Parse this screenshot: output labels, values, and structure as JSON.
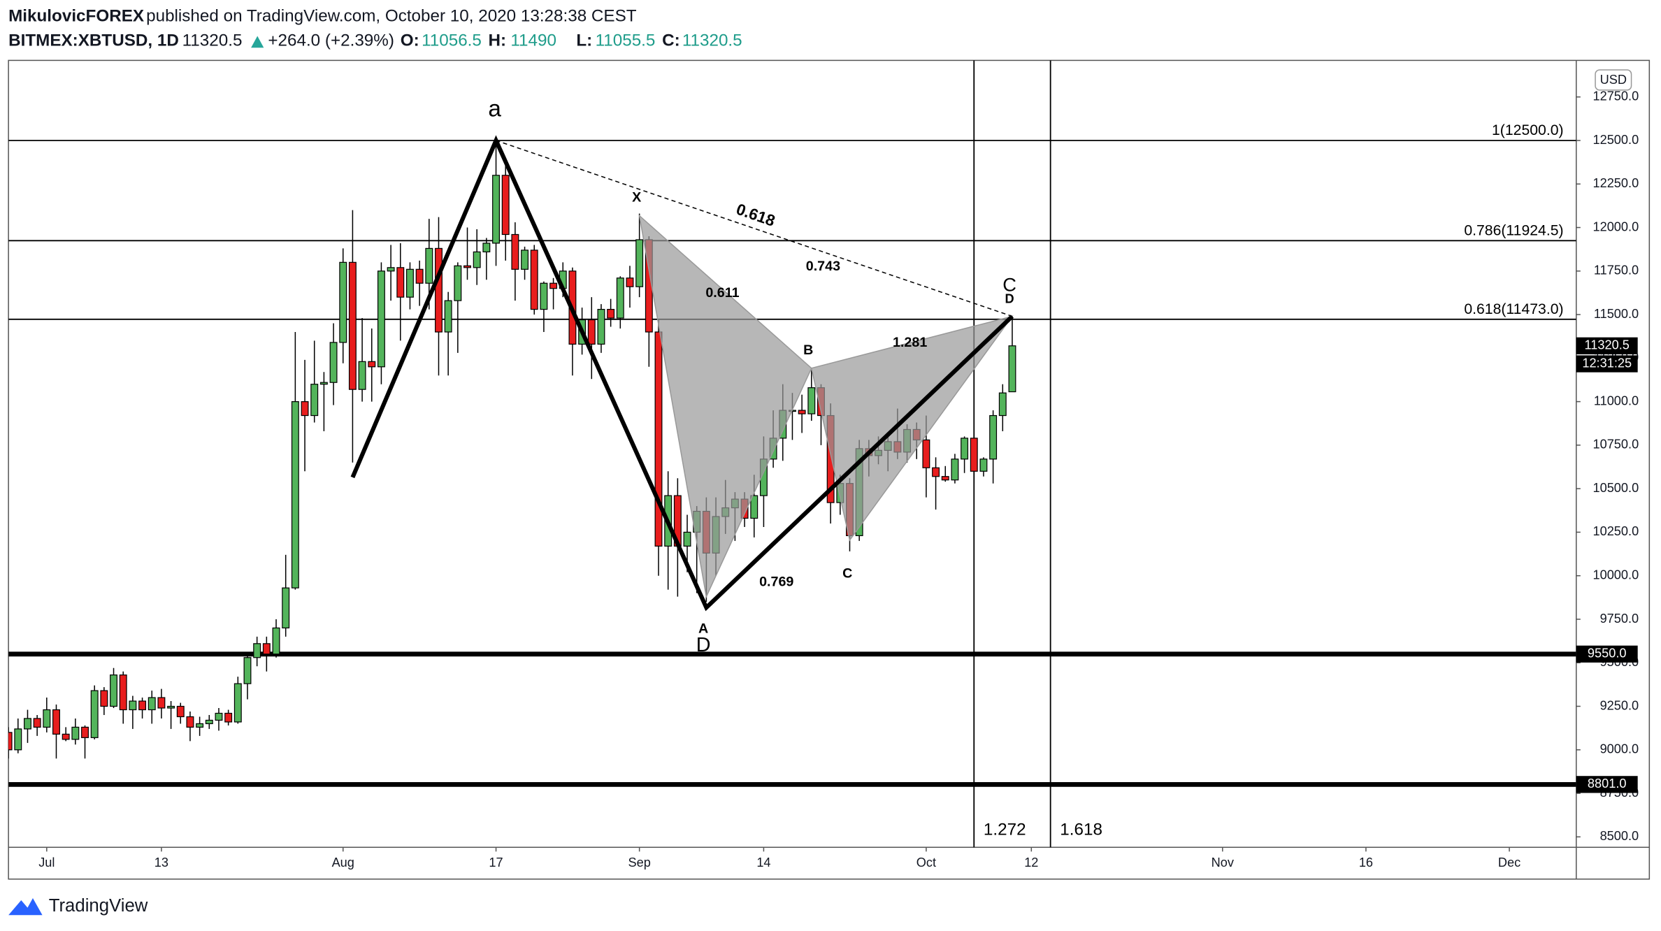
{
  "header": {
    "author": "MikulovicFOREX",
    "published": "published on TradingView.com, October 10, 2020 13:28:38 CEST",
    "symbol": "BITMEX:XBTUSD, 1D",
    "change": "+264.0 (+2.39%)",
    "open_label": "O:",
    "high_label": "H:",
    "low_label": "L:",
    "close_label": "C:"
  },
  "chart_data": {
    "type": "candlestick",
    "currency": "USD",
    "countdown": "12:31:25",
    "x": [
      "06-27",
      "06-28",
      "06-29",
      "06-30",
      "07-01",
      "07-02",
      "07-03",
      "07-04",
      "07-05",
      "07-06",
      "07-07",
      "07-08",
      "07-09",
      "07-10",
      "07-11",
      "07-12",
      "07-13",
      "07-14",
      "07-15",
      "07-16",
      "07-17",
      "07-18",
      "07-19",
      "07-20",
      "07-21",
      "07-22",
      "07-23",
      "07-24",
      "07-25",
      "07-26",
      "07-27",
      "07-28",
      "07-29",
      "07-30",
      "07-31",
      "08-01",
      "08-02",
      "08-03",
      "08-04",
      "08-05",
      "08-06",
      "08-07",
      "08-08",
      "08-09",
      "08-10",
      "08-11",
      "08-12",
      "08-13",
      "08-14",
      "08-15",
      "08-16",
      "08-17",
      "08-18",
      "08-19",
      "08-20",
      "08-21",
      "08-22",
      "08-23",
      "08-24",
      "08-25",
      "08-26",
      "08-27",
      "08-28",
      "08-29",
      "08-30",
      "08-31",
      "09-01",
      "09-02",
      "09-03",
      "09-04",
      "09-05",
      "09-06",
      "09-07",
      "09-08",
      "09-09",
      "09-10",
      "09-11",
      "09-12",
      "09-13",
      "09-14",
      "09-15",
      "09-16",
      "09-17",
      "09-18",
      "09-19",
      "09-20",
      "09-21",
      "09-22",
      "09-23",
      "09-24",
      "09-25",
      "09-26",
      "09-27",
      "09-28",
      "09-29",
      "09-30",
      "10-01",
      "10-02",
      "10-03",
      "10-04",
      "10-05",
      "10-06",
      "10-07",
      "10-08",
      "10-09",
      "10-10"
    ],
    "open": [
      9100,
      9000,
      9120,
      9180,
      9130,
      9230,
      9090,
      9060,
      9130,
      9070,
      9340,
      9250,
      9430,
      9230,
      9280,
      9230,
      9300,
      9240,
      9250,
      9190,
      9130,
      9150,
      9170,
      9210,
      9160,
      9380,
      9530,
      9610,
      9550,
      9700,
      9930,
      11000,
      10920,
      11100,
      11110,
      11340,
      11800,
      11070,
      11230,
      11200,
      11750,
      11770,
      11600,
      11760,
      11680,
      11880,
      11400,
      11580,
      11780,
      11770,
      11860,
      11910,
      12300,
      11960,
      11760,
      11870,
      11530,
      11680,
      11650,
      11750,
      11330,
      11470,
      11330,
      11530,
      11480,
      11710,
      11660,
      11930,
      11400,
      10170,
      10460,
      10170,
      10250,
      10370,
      10130,
      10340,
      10390,
      10440,
      10330,
      10460,
      10670,
      10790,
      10950,
      10950,
      10930,
      11080,
      10920,
      10420,
      10530,
      10230,
      10730,
      10690,
      10720,
      10770,
      10710,
      10840,
      10780,
      10620,
      10570,
      10550,
      10670,
      10790,
      10600,
      10670,
      10920,
      11056.5
    ],
    "high": [
      9130,
      9180,
      9230,
      9200,
      9300,
      9260,
      9130,
      9180,
      9140,
      9370,
      9360,
      9470,
      9450,
      9310,
      9300,
      9340,
      9350,
      9280,
      9270,
      9220,
      9190,
      9200,
      9240,
      9230,
      9420,
      9550,
      9650,
      9650,
      9750,
      10120,
      11400,
      11240,
      11350,
      11170,
      11450,
      11880,
      12100,
      11480,
      11420,
      11800,
      11900,
      11910,
      11800,
      11810,
      12050,
      12060,
      11630,
      11800,
      12000,
      11990,
      11940,
      12470,
      12390,
      12030,
      11890,
      11900,
      11690,
      11710,
      11800,
      11770,
      11540,
      11600,
      11560,
      11590,
      11720,
      11780,
      12080,
      11950,
      11470,
      10600,
      10560,
      10350,
      10400,
      10450,
      10450,
      10550,
      10480,
      10480,
      10580,
      10800,
      10950,
      11100,
      11050,
      11040,
      11180,
      11100,
      10990,
      10580,
      10560,
      10780,
      10780,
      10800,
      10820,
      10960,
      10870,
      10880,
      10920,
      10680,
      10630,
      10700,
      10800,
      10800,
      10680,
      10950,
      11100,
      11490
    ],
    "low": [
      8950,
      8980,
      9040,
      9080,
      9100,
      8950,
      9050,
      9030,
      8950,
      9060,
      9200,
      9240,
      9150,
      9120,
      9180,
      9150,
      9180,
      9120,
      9150,
      9050,
      9080,
      9120,
      9110,
      9140,
      9150,
      9290,
      9480,
      9450,
      9530,
      9650,
      9920,
      10600,
      10880,
      10830,
      10980,
      11220,
      10650,
      11000,
      11000,
      11100,
      11580,
      11350,
      11530,
      11550,
      11530,
      11150,
      11150,
      11280,
      11700,
      11670,
      11700,
      11780,
      11810,
      11580,
      11700,
      11500,
      11400,
      11530,
      11600,
      11150,
      11270,
      11130,
      11280,
      11430,
      11420,
      11540,
      11600,
      11200,
      10000,
      9920,
      9880,
      10020,
      9900,
      9850,
      10000,
      10240,
      10200,
      10280,
      10220,
      10280,
      10620,
      10660,
      10780,
      10820,
      10890,
      10750,
      10300,
      10350,
      10140,
      10200,
      10570,
      10640,
      10600,
      10670,
      10650,
      10670,
      10450,
      10380,
      10540,
      10530,
      10590,
      10530,
      10570,
      10530,
      10830,
      11055.5
    ],
    "close": [
      9000,
      9120,
      9180,
      9130,
      9230,
      9090,
      9060,
      9130,
      9070,
      9340,
      9250,
      9430,
      9230,
      9280,
      9230,
      9300,
      9240,
      9250,
      9190,
      9130,
      9150,
      9170,
      9210,
      9160,
      9380,
      9530,
      9610,
      9550,
      9700,
      9930,
      11000,
      10920,
      11100,
      11110,
      11340,
      11800,
      11070,
      11230,
      11200,
      11750,
      11770,
      11600,
      11760,
      11680,
      11880,
      11400,
      11580,
      11780,
      11770,
      11860,
      11910,
      12300,
      11960,
      11760,
      11870,
      11530,
      11680,
      11650,
      11750,
      11330,
      11470,
      11330,
      11530,
      11480,
      11710,
      11660,
      11930,
      11400,
      10170,
      10460,
      10170,
      10250,
      10370,
      10130,
      10340,
      10390,
      10440,
      10330,
      10460,
      10670,
      10790,
      10950,
      10950,
      10930,
      11080,
      10920,
      10420,
      10530,
      10230,
      10730,
      10690,
      10720,
      10770,
      10710,
      10840,
      10780,
      10620,
      10570,
      10550,
      10670,
      10790,
      10600,
      10670,
      10920,
      11050,
      11320.5
    ],
    "up_color": "#53b45b",
    "down_color": "#e81d1d",
    "xlim": [
      "06-27",
      "12-08"
    ],
    "xticks": [
      {
        "value": "07-01",
        "label": "Jul"
      },
      {
        "value": "07-13",
        "label": "13"
      },
      {
        "value": "08-01",
        "label": "Aug"
      },
      {
        "value": "08-17",
        "label": "17"
      },
      {
        "value": "09-01",
        "label": "Sep"
      },
      {
        "value": "09-14",
        "label": "14"
      },
      {
        "value": "10-01",
        "label": "Oct"
      },
      {
        "value": "10-12",
        "label": "12"
      },
      {
        "value": "11-01",
        "label": "Nov"
      },
      {
        "value": "11-16",
        "label": "16"
      },
      {
        "value": "12-01",
        "label": "Dec"
      }
    ],
    "ylim": [
      8440,
      12960
    ],
    "yticks": [
      {
        "value": 8500,
        "label": "8500.0"
      },
      {
        "value": 8750,
        "label": "8750.0"
      },
      {
        "value": 9000,
        "label": "9000.0"
      },
      {
        "value": 9250,
        "label": "9250.0"
      },
      {
        "value": 9500,
        "label": "9500.0"
      },
      {
        "value": 9750,
        "label": "9750.0"
      },
      {
        "value": 10000,
        "label": "10000.0"
      },
      {
        "value": 10250,
        "label": "10250.0"
      },
      {
        "value": 10500,
        "label": "10500.0"
      },
      {
        "value": 10750,
        "label": "10750.0"
      },
      {
        "value": 11000,
        "label": "11000.0"
      },
      {
        "value": 11250,
        "label": "11250.0"
      },
      {
        "value": 11500,
        "label": "11500.0"
      },
      {
        "value": 11750,
        "label": "11750.0"
      },
      {
        "value": 12000,
        "label": "12000.0"
      },
      {
        "value": 12250,
        "label": "12250.0"
      },
      {
        "value": 12500,
        "label": "12500.0"
      },
      {
        "value": 12750,
        "label": "12750.0"
      }
    ],
    "levels": [
      {
        "value": 12500,
        "label": "1(12500.0)"
      },
      {
        "value": 11924.5,
        "label": "0.786(11924.5)"
      },
      {
        "value": 11473,
        "label": "0.618(11473.0)"
      }
    ],
    "supports": [
      {
        "value": 9550,
        "label": "9550.0"
      },
      {
        "value": 8801,
        "label": "8801.0"
      }
    ],
    "time_lines": [
      {
        "x": "10-06",
        "label": "1.272"
      },
      {
        "x": "10-14",
        "label": "1.618"
      }
    ],
    "abcd": {
      "x": [
        "08-02",
        "08-17",
        "09-08",
        "10-10"
      ],
      "y": [
        10565,
        12500,
        9817,
        11490
      ]
    },
    "trend": {
      "x": [
        "08-17",
        "10-10"
      ],
      "y": [
        12500,
        11490
      ]
    },
    "harmonic": {
      "x": [
        "09-01",
        "09-08",
        "09-19",
        "09-23",
        "10-10"
      ],
      "y": [
        12068,
        9880,
        11192,
        10204,
        11490
      ]
    },
    "labels": [
      "a",
      "A",
      "D",
      "C",
      "D",
      "X",
      "B",
      "C",
      "0.611",
      "0.743",
      "1.281",
      "0.769",
      "0.618"
    ]
  },
  "footer": {
    "brand": "TradingView"
  }
}
